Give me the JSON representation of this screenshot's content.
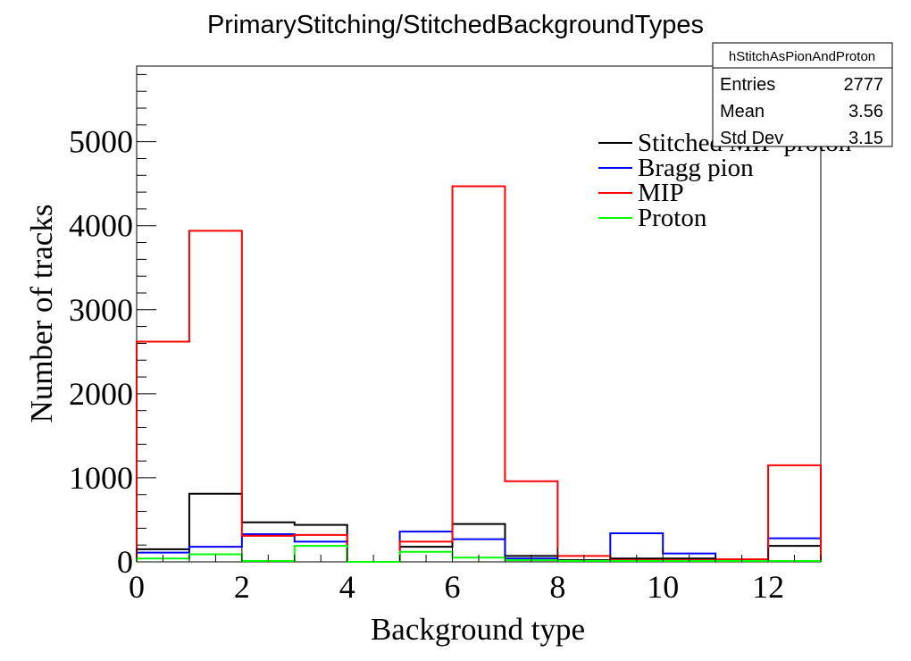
{
  "chart_data": {
    "type": "histogram",
    "title": "PrimaryStitching/StitchedBackgroundTypes",
    "xlabel": "Background type",
    "ylabel": "Number of tracks",
    "xlim": [
      0,
      13
    ],
    "ylim": [
      0,
      5900
    ],
    "x_ticks": [
      0,
      2,
      4,
      6,
      8,
      10,
      12
    ],
    "y_ticks": [
      0,
      1000,
      2000,
      3000,
      4000,
      5000
    ],
    "bin_edges": [
      0,
      1,
      2,
      3,
      4,
      5,
      6,
      7,
      8,
      9,
      10,
      11,
      12,
      13
    ],
    "series": [
      {
        "name": "Stitched MIP-proton",
        "color": "#000000",
        "values": [
          150,
          810,
          470,
          440,
          0,
          180,
          450,
          70,
          20,
          40,
          40,
          20,
          190
        ]
      },
      {
        "name": "Bragg pion",
        "color": "#0000ff",
        "values": [
          110,
          180,
          330,
          240,
          0,
          360,
          270,
          40,
          10,
          340,
          100,
          20,
          280
        ]
      },
      {
        "name": "MIP",
        "color": "#ff0000",
        "values": [
          2620,
          3940,
          310,
          320,
          0,
          240,
          4470,
          960,
          70,
          20,
          20,
          30,
          1150
        ]
      },
      {
        "name": "Proton",
        "color": "#00ff00",
        "values": [
          40,
          90,
          10,
          190,
          0,
          120,
          50,
          20,
          10,
          10,
          10,
          10,
          10
        ]
      }
    ],
    "legend_position": "top-right",
    "stats_box": {
      "name": "hStitchAsPionAndProton",
      "rows": [
        {
          "label": "Entries",
          "value": "2777"
        },
        {
          "label": "Mean",
          "value": "3.56"
        },
        {
          "label": "Std Dev",
          "value": "3.15"
        }
      ]
    }
  }
}
